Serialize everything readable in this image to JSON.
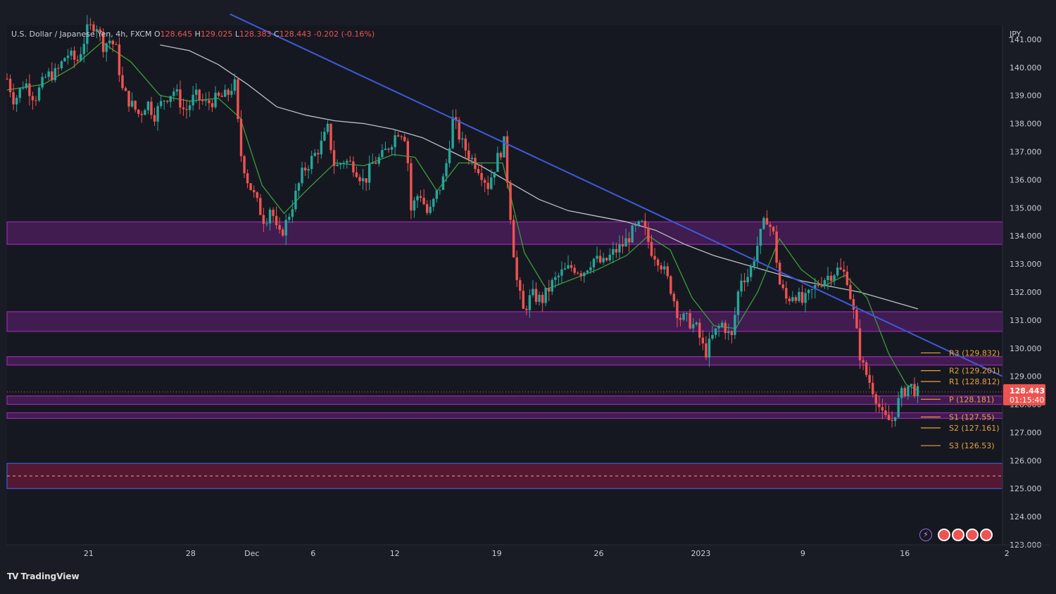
{
  "legend": {
    "symbol": "U.S. Dollar / Japanese Yen, 4h, FXCM",
    "o_label": "O",
    "o_value": "128.645",
    "h_label": "H",
    "h_value": "129.025",
    "l_label": "L",
    "l_value": "128.383",
    "c_label": "C",
    "c_value": "128.443",
    "change": "-0.202 (-0.16%)"
  },
  "currency": "JPY",
  "brand": {
    "logo": "TV",
    "name": "TradingView"
  },
  "price_tag": {
    "price": "128.443",
    "countdown": "01:15:40"
  },
  "colors": {
    "background": "#1a1c25",
    "up": "#26a69a",
    "down": "#ef5350",
    "trendline": "#3d5bd9",
    "ma_fast": "#3a9d3a",
    "ma_slow": "#b8c2c2",
    "zone": "#8e24aa",
    "pivot": "#e5a33a"
  },
  "chart_data": {
    "type": "candlestick",
    "y_range": [
      123,
      141.5
    ],
    "y_ticks": [
      "141.000",
      "140.000",
      "139.000",
      "138.000",
      "137.000",
      "136.000",
      "135.000",
      "134.000",
      "133.000",
      "132.000",
      "131.000",
      "130.000",
      "129.000",
      "128.000",
      "127.000",
      "126.000",
      "125.000",
      "124.000",
      "123.000"
    ],
    "x_ticks": [
      {
        "label": "21",
        "t": 7.1
      },
      {
        "label": "28",
        "t": 14.1
      },
      {
        "label": "Dec",
        "t": 18.3
      },
      {
        "label": "6",
        "t": 22.5
      },
      {
        "label": "12",
        "t": 28.1
      },
      {
        "label": "19",
        "t": 35.1
      },
      {
        "label": "26",
        "t": 42.1
      },
      {
        "label": "2023",
        "t": 49.1
      },
      {
        "label": "9",
        "t": 56.1
      },
      {
        "label": "16",
        "t": 63.1
      },
      {
        "label": "2",
        "t": 70.1
      }
    ],
    "t_range": [
      1.5,
      69.8
    ],
    "path": [
      [
        1.5,
        139.6
      ],
      [
        2.0,
        138.8
      ],
      [
        2.7,
        139.5
      ],
      [
        3.4,
        138.9
      ],
      [
        4.2,
        139.7
      ],
      [
        4.9,
        139.8
      ],
      [
        5.6,
        140.5
      ],
      [
        6.3,
        140.2
      ],
      [
        7.0,
        141.3
      ],
      [
        7.6,
        141.6
      ],
      [
        8.1,
        140.8
      ],
      [
        8.6,
        141.0
      ],
      [
        9.0,
        140.6
      ],
      [
        9.4,
        139.2
      ],
      [
        10.0,
        138.7
      ],
      [
        10.6,
        138.3
      ],
      [
        11.1,
        138.8
      ],
      [
        11.6,
        138.3
      ],
      [
        12.3,
        138.9
      ],
      [
        13.0,
        139.2
      ],
      [
        13.7,
        138.4
      ],
      [
        14.4,
        139.0
      ],
      [
        15.1,
        138.7
      ],
      [
        16.0,
        138.9
      ],
      [
        16.6,
        139.0
      ],
      [
        17.1,
        139.5
      ],
      [
        17.5,
        137.0
      ],
      [
        18.0,
        136.0
      ],
      [
        18.7,
        135.1
      ],
      [
        19.2,
        134.5
      ],
      [
        19.6,
        135.1
      ],
      [
        20.1,
        133.9
      ],
      [
        20.6,
        134.4
      ],
      [
        21.2,
        135.3
      ],
      [
        21.8,
        136.3
      ],
      [
        22.5,
        136.8
      ],
      [
        23.1,
        137.3
      ],
      [
        23.5,
        137.8
      ],
      [
        24.0,
        136.4
      ],
      [
        24.6,
        136.7
      ],
      [
        25.3,
        136.5
      ],
      [
        26.0,
        135.9
      ],
      [
        26.6,
        136.6
      ],
      [
        27.2,
        136.8
      ],
      [
        27.8,
        137.3
      ],
      [
        28.4,
        137.8
      ],
      [
        28.9,
        137.5
      ],
      [
        29.2,
        134.9
      ],
      [
        29.8,
        135.6
      ],
      [
        30.4,
        134.7
      ],
      [
        30.9,
        135.4
      ],
      [
        31.5,
        136.1
      ],
      [
        32.1,
        138.2
      ],
      [
        32.7,
        137.3
      ],
      [
        33.3,
        136.8
      ],
      [
        33.9,
        136.4
      ],
      [
        34.5,
        135.8
      ],
      [
        35.1,
        136.7
      ],
      [
        35.6,
        137.3
      ],
      [
        36.0,
        135.0
      ],
      [
        36.4,
        132.6
      ],
      [
        36.9,
        131.3
      ],
      [
        37.5,
        131.9
      ],
      [
        38.2,
        131.7
      ],
      [
        38.9,
        132.3
      ],
      [
        39.6,
        132.7
      ],
      [
        40.3,
        132.9
      ],
      [
        41.0,
        132.7
      ],
      [
        41.7,
        133.2
      ],
      [
        42.4,
        133.0
      ],
      [
        43.1,
        133.4
      ],
      [
        43.8,
        133.7
      ],
      [
        44.5,
        134.2
      ],
      [
        45.1,
        134.4
      ],
      [
        45.7,
        133.5
      ],
      [
        46.3,
        133.1
      ],
      [
        47.0,
        132.2
      ],
      [
        47.6,
        131.1
      ],
      [
        48.2,
        131.0
      ],
      [
        48.8,
        130.7
      ],
      [
        49.4,
        129.8
      ],
      [
        50.0,
        130.5
      ],
      [
        50.6,
        130.9
      ],
      [
        51.2,
        130.3
      ],
      [
        51.8,
        132.5
      ],
      [
        52.4,
        132.6
      ],
      [
        53.0,
        133.7
      ],
      [
        53.6,
        134.7
      ],
      [
        54.1,
        134.0
      ],
      [
        54.5,
        132.3
      ],
      [
        55.0,
        131.7
      ],
      [
        55.5,
        132.0
      ],
      [
        56.1,
        131.6
      ],
      [
        56.7,
        132.0
      ],
      [
        57.3,
        132.4
      ],
      [
        57.9,
        132.6
      ],
      [
        58.5,
        132.8
      ],
      [
        59.1,
        132.6
      ],
      [
        59.6,
        131.2
      ],
      [
        60.1,
        129.5
      ],
      [
        60.6,
        128.9
      ],
      [
        61.1,
        128.3
      ],
      [
        61.6,
        127.5
      ],
      [
        62.2,
        127.4
      ],
      [
        62.8,
        128.3
      ],
      [
        63.4,
        128.7
      ],
      [
        64.0,
        128.4
      ]
    ],
    "ma_fast": [
      [
        1.5,
        139.2
      ],
      [
        4.0,
        139.4
      ],
      [
        6.0,
        140.0
      ],
      [
        8.0,
        140.9
      ],
      [
        10.0,
        140.2
      ],
      [
        12.0,
        139.0
      ],
      [
        14.0,
        138.8
      ],
      [
        16.0,
        138.9
      ],
      [
        17.5,
        138.2
      ],
      [
        19.0,
        135.8
      ],
      [
        20.5,
        134.8
      ],
      [
        22.0,
        135.6
      ],
      [
        24.0,
        136.6
      ],
      [
        26.0,
        136.5
      ],
      [
        28.0,
        136.9
      ],
      [
        29.5,
        136.8
      ],
      [
        31.0,
        135.6
      ],
      [
        32.5,
        136.6
      ],
      [
        34.0,
        136.6
      ],
      [
        35.5,
        136.6
      ],
      [
        37.0,
        133.4
      ],
      [
        38.5,
        132.1
      ],
      [
        40.0,
        132.4
      ],
      [
        42.0,
        132.8
      ],
      [
        44.0,
        133.3
      ],
      [
        45.5,
        134.0
      ],
      [
        47.0,
        133.5
      ],
      [
        48.5,
        131.8
      ],
      [
        50.0,
        130.8
      ],
      [
        51.5,
        130.7
      ],
      [
        53.0,
        132.0
      ],
      [
        54.5,
        133.9
      ],
      [
        56.0,
        132.8
      ],
      [
        57.5,
        132.2
      ],
      [
        59.0,
        132.6
      ],
      [
        60.5,
        131.8
      ],
      [
        62.0,
        129.8
      ],
      [
        63.2,
        128.7
      ],
      [
        64.0,
        128.5
      ]
    ],
    "ma_slow": [
      [
        12.0,
        140.8
      ],
      [
        14.0,
        140.6
      ],
      [
        16.0,
        140.1
      ],
      [
        18.0,
        139.4
      ],
      [
        20.0,
        138.6
      ],
      [
        22.0,
        138.3
      ],
      [
        24.0,
        138.1
      ],
      [
        26.0,
        138.0
      ],
      [
        28.0,
        137.8
      ],
      [
        30.0,
        137.5
      ],
      [
        32.0,
        137.0
      ],
      [
        34.0,
        136.5
      ],
      [
        36.0,
        135.9
      ],
      [
        38.0,
        135.3
      ],
      [
        40.0,
        134.9
      ],
      [
        42.0,
        134.7
      ],
      [
        44.0,
        134.5
      ],
      [
        46.0,
        134.2
      ],
      [
        48.0,
        133.7
      ],
      [
        50.0,
        133.3
      ],
      [
        52.0,
        133.0
      ],
      [
        54.0,
        132.7
      ],
      [
        56.0,
        132.4
      ],
      [
        58.0,
        132.2
      ],
      [
        60.0,
        132.0
      ],
      [
        62.0,
        131.7
      ],
      [
        64.0,
        131.4
      ]
    ],
    "trendline": {
      "from": [
        16.8,
        141.9
      ],
      "to": [
        69.8,
        129.0
      ]
    },
    "zones": [
      [
        133.7,
        134.5
      ],
      [
        130.6,
        131.3
      ],
      [
        129.4,
        129.7
      ],
      [
        128.0,
        128.3
      ],
      [
        127.5,
        127.7
      ],
      [
        125.0,
        125.9
      ]
    ],
    "zone_red": [
      125.0,
      125.9
    ],
    "pivots": [
      {
        "label": "R3 (129.832)",
        "value": 129.832
      },
      {
        "label": "R2 (129.201)",
        "value": 129.201
      },
      {
        "label": "R1 (128.812)",
        "value": 128.812
      },
      {
        "label": "P (128.181)",
        "value": 128.181
      },
      {
        "label": "S1 (127.55)",
        "value": 127.55
      },
      {
        "label": "S2 (127.161)",
        "value": 127.161
      },
      {
        "label": "S3 (126.53)",
        "value": 126.53
      }
    ],
    "last_price": 128.443
  }
}
